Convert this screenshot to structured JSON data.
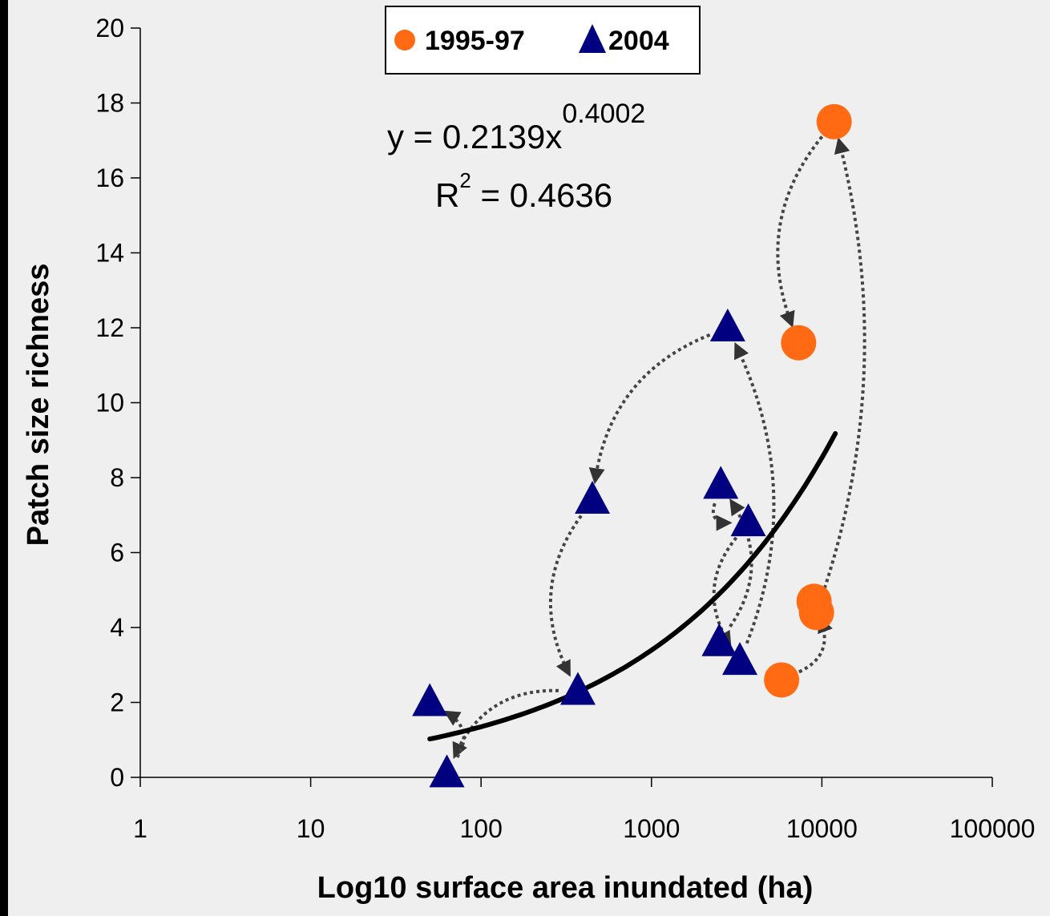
{
  "chart_data": {
    "type": "scatter",
    "xlabel": "Log10 surface area inundated (ha)",
    "ylabel": "Patch size richness",
    "x_scale": "log",
    "xlim": [
      1,
      100000
    ],
    "ylim": [
      0,
      20
    ],
    "x_tick_labels": [
      "1",
      "10",
      "100",
      "1000",
      "10000",
      "100000"
    ],
    "y_tick_labels": [
      "0",
      "2",
      "4",
      "6",
      "8",
      "10",
      "12",
      "14",
      "16",
      "18",
      "20"
    ],
    "legend": {
      "placement": "top-center",
      "entries": [
        {
          "name": "1995-97",
          "marker": "circle",
          "color": "#ff6a13"
        },
        {
          "name": "2004",
          "marker": "triangle",
          "color": "#000080"
        }
      ]
    },
    "series": [
      {
        "name": "1995-97",
        "marker": "circle",
        "color": "#ff6a13",
        "points": [
          {
            "x": 11800,
            "y": 17.5
          },
          {
            "x": 7300,
            "y": 11.6
          },
          {
            "x": 9000,
            "y": 4.7
          },
          {
            "x": 9300,
            "y": 4.4
          },
          {
            "x": 5800,
            "y": 2.6
          }
        ]
      },
      {
        "name": "2004",
        "marker": "triangle",
        "color": "#000080",
        "points": [
          {
            "x": 2800,
            "y": 12.0
          },
          {
            "x": 450,
            "y": 7.4
          },
          {
            "x": 2550,
            "y": 7.8
          },
          {
            "x": 3700,
            "y": 6.8
          },
          {
            "x": 2500,
            "y": 3.6
          },
          {
            "x": 3300,
            "y": 3.1
          },
          {
            "x": 370,
            "y": 2.3
          },
          {
            "x": 50,
            "y": 2.0
          },
          {
            "x": 63,
            "y": 0.1
          }
        ]
      }
    ],
    "trendline": {
      "type": "power",
      "a": 0.2139,
      "b": 0.4002,
      "x_range": [
        50,
        12000
      ],
      "color": "#000000"
    },
    "annotations": {
      "equation_main": "y = 0.2139x",
      "equation_exponent": "0.4002",
      "r2_prefix": "R",
      "r2_exponent": "2",
      "r2_value": " = 0.4636"
    },
    "arrows": [
      {
        "from": [
          11800,
          17.5
        ],
        "to": [
          7300,
          11.6
        ]
      },
      {
        "from": [
          9300,
          4.4
        ],
        "to": [
          11800,
          17.5
        ]
      },
      {
        "from": [
          5800,
          2.6
        ],
        "to": [
          9000,
          4.7
        ]
      },
      {
        "from": [
          2800,
          12.0
        ],
        "to": [
          450,
          7.4
        ]
      },
      {
        "from": [
          3300,
          3.1
        ],
        "to": [
          2800,
          12.0
        ]
      },
      {
        "from": [
          2550,
          7.8
        ],
        "to": [
          3700,
          6.8
        ]
      },
      {
        "from": [
          2500,
          3.6
        ],
        "to": [
          2550,
          7.8
        ]
      },
      {
        "from": [
          3700,
          6.8
        ],
        "to": [
          3300,
          3.1
        ]
      },
      {
        "from": [
          450,
          7.4
        ],
        "to": [
          370,
          2.3
        ]
      },
      {
        "from": [
          370,
          2.3
        ],
        "to": [
          63,
          0.1
        ]
      },
      {
        "from": [
          63,
          0.1
        ],
        "to": [
          50,
          2.0
        ]
      }
    ],
    "grid": false
  }
}
